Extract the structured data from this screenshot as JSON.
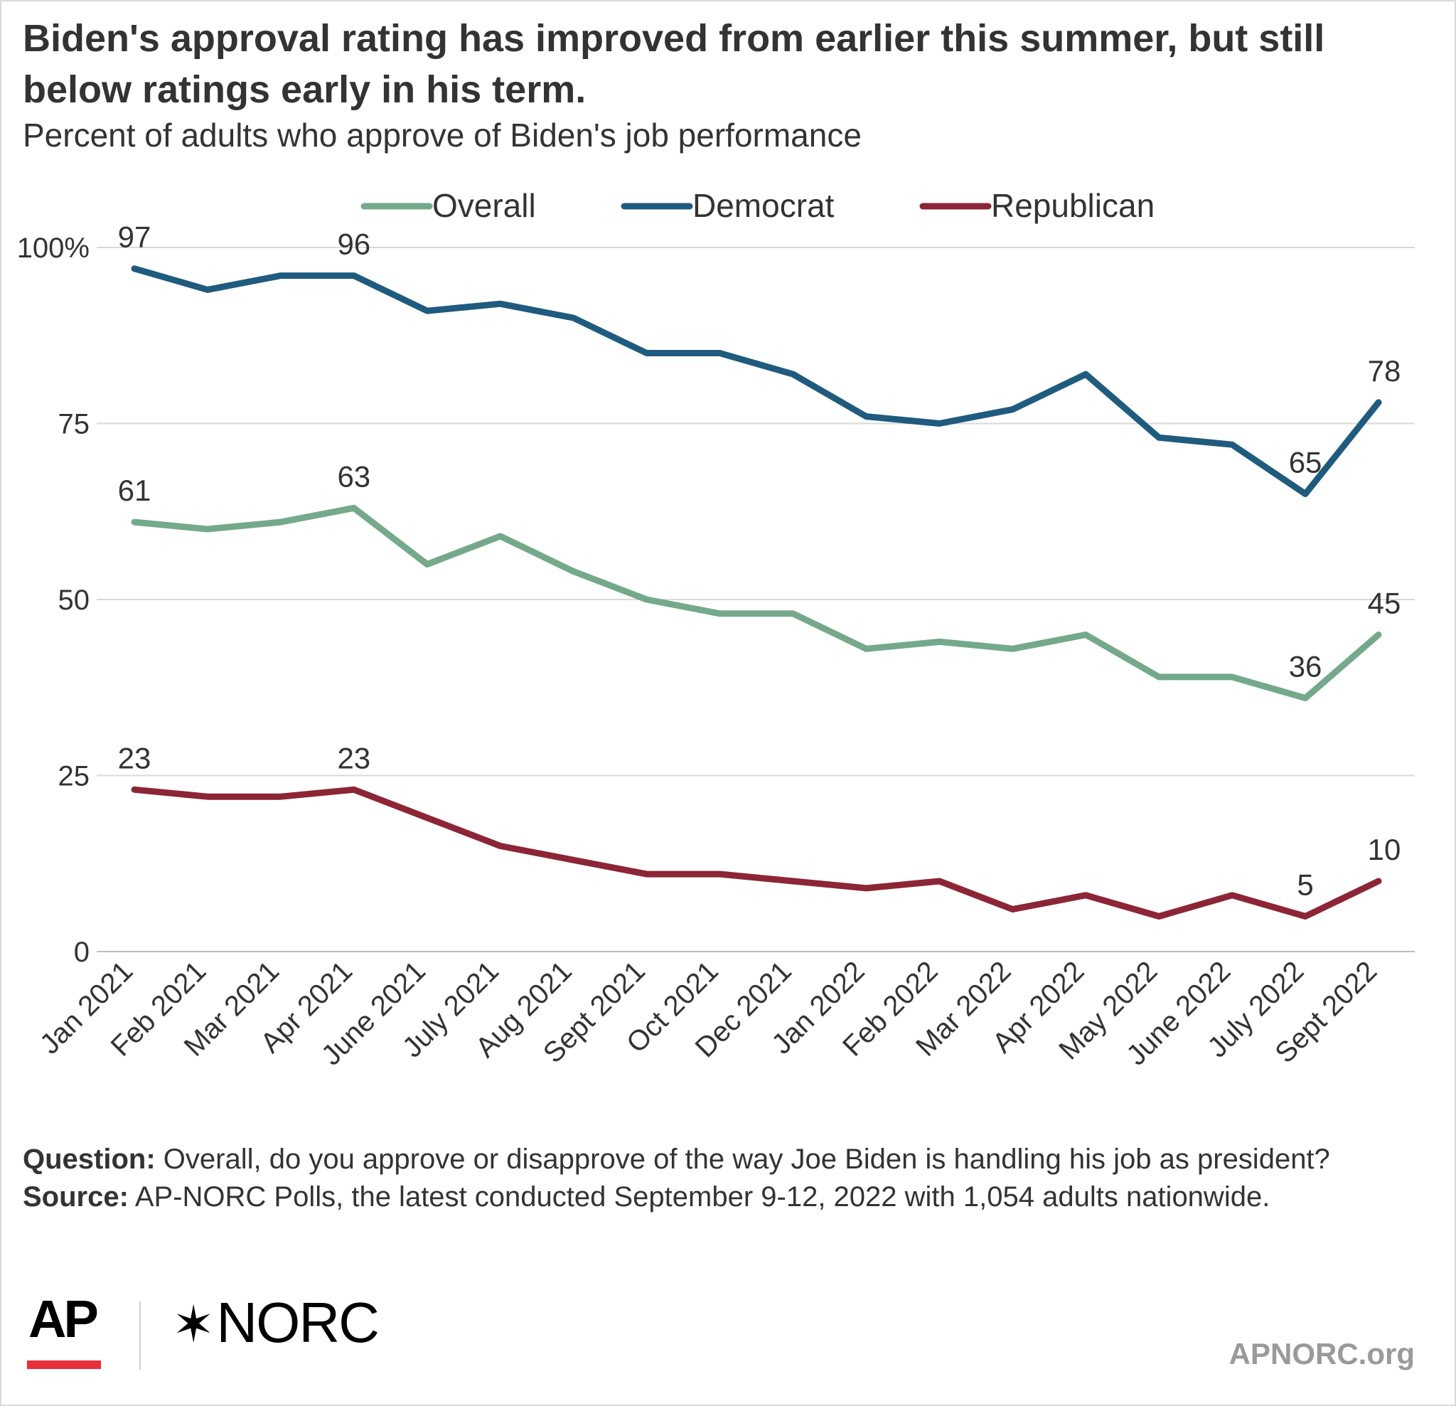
{
  "title": "Biden's approval rating has improved from earlier this summer, but still below ratings early in his term.",
  "subtitle": "Percent of adults who approve of Biden's job performance",
  "chart_data": {
    "type": "line",
    "categories": [
      "Jan 2021",
      "Feb 2021",
      "Mar 2021",
      "Apr 2021",
      "June 2021",
      "July 2021",
      "Aug 2021",
      "Sept 2021",
      "Oct 2021",
      "Dec 2021",
      "Jan 2022",
      "Feb 2022",
      "Mar 2022",
      "Apr 2022",
      "May 2022",
      "June 2022",
      "July 2022",
      "Sept 2022"
    ],
    "series": [
      {
        "name": "Overall",
        "color": "#74a98b",
        "values": [
          61,
          60,
          61,
          63,
          55,
          59,
          54,
          50,
          48,
          48,
          43,
          44,
          43,
          45,
          39,
          39,
          36,
          45
        ],
        "labeled_indices": [
          0,
          3,
          16,
          17
        ]
      },
      {
        "name": "Democrat",
        "color": "#1f5b7e",
        "values": [
          97,
          94,
          96,
          96,
          91,
          92,
          90,
          85,
          85,
          82,
          76,
          75,
          77,
          82,
          73,
          72,
          65,
          78
        ],
        "labeled_indices": [
          0,
          3,
          16,
          17
        ]
      },
      {
        "name": "Republican",
        "color": "#8c2536",
        "values": [
          23,
          22,
          22,
          23,
          19,
          15,
          13,
          11,
          11,
          10,
          9,
          10,
          6,
          8,
          5,
          8,
          5,
          10
        ],
        "labeled_indices": [
          0,
          3,
          16,
          17
        ]
      }
    ],
    "yticks": [
      0,
      25,
      50,
      75,
      100
    ],
    "ytick_labels": [
      "0",
      "25",
      "50",
      "75",
      "100%"
    ],
    "ylim": [
      0,
      100
    ],
    "xlabel": "",
    "ylabel": "",
    "grid": true,
    "legend_position": "top"
  },
  "notes": {
    "question_label": "Question:",
    "question_text": "Overall, do you approve or disapprove of the way Joe Biden is handling his job as president?",
    "source_label": "Source:",
    "source_text": "AP-NORC Polls, the latest conducted September 9-12, 2022 with 1,054 adults nationwide."
  },
  "logos": {
    "ap": "AP",
    "norc_star": "✶",
    "norc": "NORC"
  },
  "site": "APNORC.org"
}
